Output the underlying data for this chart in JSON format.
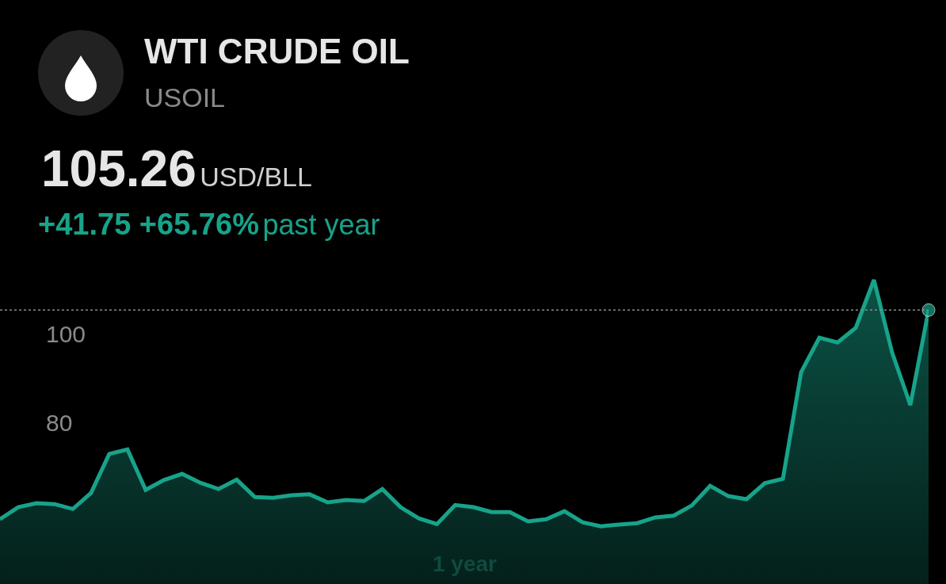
{
  "chart_data": {
    "type": "area",
    "title": "WTI CRUDE OIL",
    "subtitle": "USOIL",
    "annotations": [
      "105.26",
      "USD/BLL",
      "+41.75 +65.76%",
      "past year",
      "1 year"
    ],
    "categories": [
      null,
      null,
      null,
      null,
      null,
      null,
      null,
      null,
      null,
      null,
      null,
      null,
      null,
      null,
      null,
      null,
      null,
      null,
      null,
      null,
      null,
      null,
      null,
      null,
      null,
      null,
      null,
      null,
      null,
      null,
      null,
      null,
      null,
      null,
      null,
      null,
      null,
      null,
      null,
      null,
      null,
      null,
      null,
      null,
      null,
      null,
      null,
      null,
      null,
      null,
      null,
      null
    ],
    "series": [
      {
        "color": "#17a38a",
        "values": [
          58.2,
          60.9,
          61.8,
          61.6,
          60.5,
          64.1,
          72.9,
          73.9,
          64.8,
          67.0,
          68.4,
          66.4,
          65.0,
          67.1,
          63.2,
          63.0,
          63.6,
          63.8,
          62.0,
          62.5,
          62.3,
          65.0,
          60.9,
          58.4,
          57.1,
          61.4,
          60.9,
          59.8,
          59.8,
          57.7,
          58.2,
          60.0,
          57.5,
          56.6,
          57.0,
          57.3,
          58.6,
          59.0,
          61.3,
          65.7,
          63.4,
          62.7,
          66.3,
          67.3,
          91.3,
          99.1,
          98.0,
          101.3,
          112.1,
          95.7,
          83.9,
          105.3
        ]
      }
    ],
    "ylim": [
      43.6,
      116.25
    ],
    "yticks": [
      80,
      100
    ],
    "tick_labels": "y",
    "ref_lines": [
      {
        "axis": "y",
        "value": 105.3,
        "color": "#8a8a8a",
        "line_style": "dotted"
      }
    ]
  }
}
